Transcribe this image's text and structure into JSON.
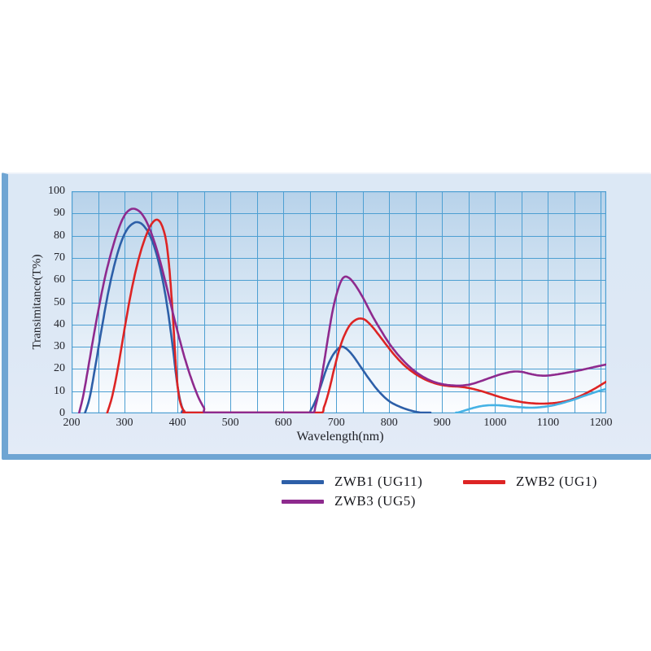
{
  "page": {
    "background": "#ffffff"
  },
  "panel": {
    "background": "#dce8f5",
    "border_color": "#6fa5d3"
  },
  "chart_data": {
    "type": "line",
    "title": "",
    "xlabel": "Wavelength(nm)",
    "ylabel": "Transimitance(T%)",
    "xlim": [
      200,
      1210
    ],
    "ylim": [
      0,
      100
    ],
    "x_ticks": [
      200,
      300,
      400,
      500,
      600,
      700,
      800,
      900,
      1000,
      1100,
      1200
    ],
    "y_ticks": [
      0,
      10,
      20,
      30,
      40,
      50,
      60,
      70,
      80,
      90,
      100
    ],
    "grid": {
      "on": true,
      "x_step": 50,
      "y_step": 10,
      "line_color": "#4d9fd2"
    },
    "plot_background_gradient": [
      "#b7d2ea",
      "#d9e7f4",
      "#fcfdff"
    ],
    "axis_frame_color": "#4d9fd2",
    "tick_text_color": "#23242b",
    "legend": {
      "position": "below-chart",
      "entries": [
        {
          "label": "ZWB1 (UG11)",
          "color": "#2d5fa8"
        },
        {
          "label": "ZWB2 (UG1)",
          "color": "#dd2424"
        },
        {
          "label": "ZWB3 (UG5)",
          "color": "#8e2a8e"
        }
      ]
    },
    "series": [
      {
        "name": "ZWB1 (UG11)",
        "color": "#2d5fa8",
        "points": [
          [
            225,
            0
          ],
          [
            234,
            7
          ],
          [
            244,
            20
          ],
          [
            256,
            37
          ],
          [
            268,
            53
          ],
          [
            280,
            66
          ],
          [
            292,
            76
          ],
          [
            304,
            82.5
          ],
          [
            316,
            85.5
          ],
          [
            326,
            86
          ],
          [
            336,
            84.5
          ],
          [
            348,
            80
          ],
          [
            360,
            72
          ],
          [
            372,
            60
          ],
          [
            382,
            46
          ],
          [
            391,
            30
          ],
          [
            398,
            16
          ],
          [
            404,
            7
          ],
          [
            410,
            2
          ],
          [
            416,
            0
          ],
          [
            500,
            0
          ],
          [
            600,
            0
          ],
          [
            644,
            0
          ],
          [
            653,
            2
          ],
          [
            663,
            7
          ],
          [
            673,
            14
          ],
          [
            683,
            21
          ],
          [
            693,
            26
          ],
          [
            703,
            29
          ],
          [
            712,
            30
          ],
          [
            722,
            28.5
          ],
          [
            733,
            25.5
          ],
          [
            746,
            21
          ],
          [
            762,
            15.5
          ],
          [
            780,
            10
          ],
          [
            800,
            5.5
          ],
          [
            822,
            2.8
          ],
          [
            845,
            1
          ],
          [
            865,
            0.2
          ],
          [
            878,
            0
          ]
        ]
      },
      {
        "name": "ZWB2 (UG1)",
        "color": "#dd2424",
        "points": [
          [
            267,
            0
          ],
          [
            277,
            8
          ],
          [
            288,
            21
          ],
          [
            300,
            38
          ],
          [
            312,
            54
          ],
          [
            324,
            67
          ],
          [
            336,
            77
          ],
          [
            348,
            84
          ],
          [
            358,
            87
          ],
          [
            366,
            86.5
          ],
          [
            373,
            83
          ],
          [
            379,
            77
          ],
          [
            384,
            67
          ],
          [
            388,
            55
          ],
          [
            392,
            41
          ],
          [
            395,
            29
          ],
          [
            398,
            18
          ],
          [
            402,
            9
          ],
          [
            407,
            3.5
          ],
          [
            413,
            1
          ],
          [
            420,
            0
          ],
          [
            520,
            0
          ],
          [
            620,
            0
          ],
          [
            669,
            0
          ],
          [
            677,
            3
          ],
          [
            686,
            10
          ],
          [
            696,
            20
          ],
          [
            706,
            29
          ],
          [
            716,
            35.5
          ],
          [
            726,
            39.8
          ],
          [
            736,
            42
          ],
          [
            745,
            42.7
          ],
          [
            755,
            42
          ],
          [
            768,
            39
          ],
          [
            782,
            34.8
          ],
          [
            798,
            29.8
          ],
          [
            815,
            24.9
          ],
          [
            833,
            20.7
          ],
          [
            853,
            17.2
          ],
          [
            873,
            14.7
          ],
          [
            893,
            13.1
          ],
          [
            913,
            12.3
          ],
          [
            933,
            12
          ],
          [
            953,
            11.3
          ],
          [
            973,
            10.1
          ],
          [
            993,
            8.6
          ],
          [
            1013,
            7.1
          ],
          [
            1033,
            5.9
          ],
          [
            1053,
            5
          ],
          [
            1073,
            4.5
          ],
          [
            1093,
            4.4
          ],
          [
            1113,
            4.7
          ],
          [
            1133,
            5.5
          ],
          [
            1153,
            7
          ],
          [
            1173,
            9.2
          ],
          [
            1193,
            11.8
          ],
          [
            1210,
            14.3
          ]
        ]
      },
      {
        "name": "ZWB3 (UG5)",
        "color": "#8e2a8e",
        "points": [
          [
            214,
            0
          ],
          [
            222,
            8
          ],
          [
            231,
            20
          ],
          [
            241,
            34
          ],
          [
            251,
            47
          ],
          [
            261,
            59
          ],
          [
            271,
            69
          ],
          [
            281,
            77.5
          ],
          [
            291,
            84.5
          ],
          [
            301,
            89.5
          ],
          [
            311,
            91.8
          ],
          [
            320,
            92
          ],
          [
            330,
            90.5
          ],
          [
            340,
            87
          ],
          [
            350,
            81.5
          ],
          [
            360,
            74.5
          ],
          [
            370,
            66
          ],
          [
            380,
            56.5
          ],
          [
            390,
            46.5
          ],
          [
            400,
            37
          ],
          [
            410,
            28
          ],
          [
            420,
            20
          ],
          [
            430,
            13
          ],
          [
            440,
            7
          ],
          [
            450,
            2.5
          ],
          [
            458,
            0
          ],
          [
            540,
            0
          ],
          [
            620,
            0
          ],
          [
            654,
            0
          ],
          [
            661,
            3.5
          ],
          [
            669,
            12
          ],
          [
            677,
            23
          ],
          [
            685,
            35
          ],
          [
            693,
            46
          ],
          [
            701,
            54
          ],
          [
            709,
            59.5
          ],
          [
            716,
            61.5
          ],
          [
            724,
            61
          ],
          [
            732,
            59
          ],
          [
            742,
            55.5
          ],
          [
            754,
            50.5
          ],
          [
            768,
            44
          ],
          [
            784,
            37.5
          ],
          [
            800,
            31.5
          ],
          [
            818,
            26
          ],
          [
            836,
            21.5
          ],
          [
            854,
            18
          ],
          [
            874,
            15.2
          ],
          [
            894,
            13.5
          ],
          [
            914,
            12.7
          ],
          [
            934,
            12.5
          ],
          [
            954,
            13.1
          ],
          [
            974,
            14.6
          ],
          [
            994,
            16.3
          ],
          [
            1014,
            17.8
          ],
          [
            1034,
            18.8
          ],
          [
            1050,
            18.7
          ],
          [
            1066,
            17.8
          ],
          [
            1082,
            17.1
          ],
          [
            1098,
            17
          ],
          [
            1118,
            17.6
          ],
          [
            1140,
            18.5
          ],
          [
            1162,
            19.5
          ],
          [
            1186,
            20.8
          ],
          [
            1210,
            22
          ]
        ]
      },
      {
        "name": "unlabeled-light-blue",
        "color": "#45b2e5",
        "points": [
          [
            925,
            0
          ],
          [
            940,
            1.1
          ],
          [
            955,
            2.2
          ],
          [
            970,
            3.1
          ],
          [
            985,
            3.6
          ],
          [
            1000,
            3.7
          ],
          [
            1015,
            3.5
          ],
          [
            1030,
            3.1
          ],
          [
            1045,
            2.8
          ],
          [
            1060,
            2.6
          ],
          [
            1075,
            2.6
          ],
          [
            1090,
            2.9
          ],
          [
            1105,
            3.4
          ],
          [
            1120,
            4.2
          ],
          [
            1135,
            5.2
          ],
          [
            1150,
            6.3
          ],
          [
            1165,
            7.6
          ],
          [
            1180,
            8.8
          ],
          [
            1195,
            10
          ],
          [
            1210,
            11
          ]
        ]
      }
    ]
  }
}
